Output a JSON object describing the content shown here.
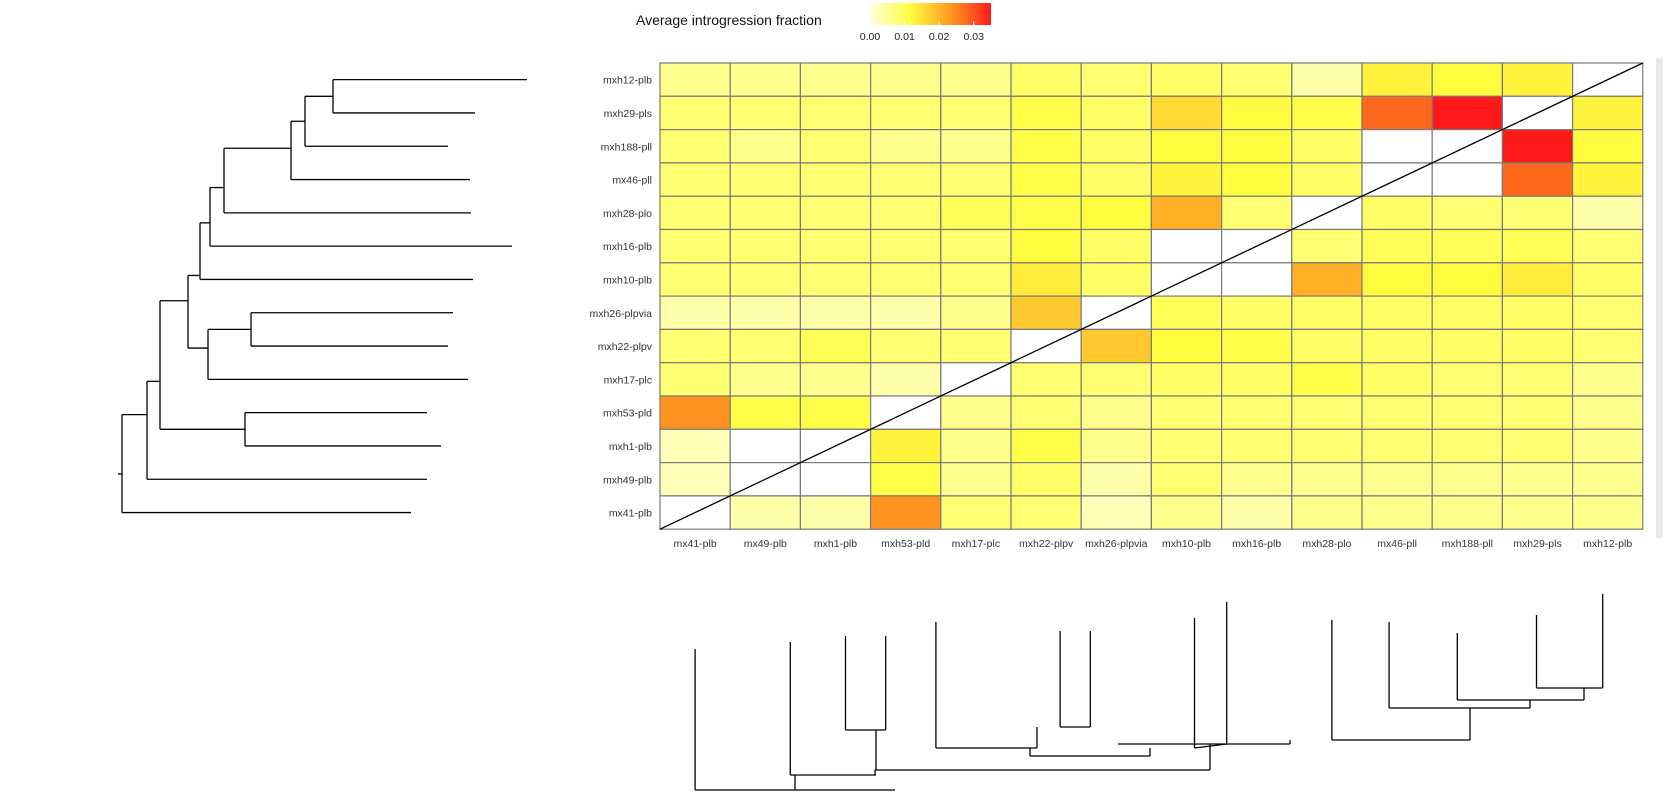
{
  "chart_data": {
    "type": "heatmap",
    "legend": {
      "title": "Average introgression fraction",
      "tick_labels": [
        "0.00",
        "0.01",
        "0.02",
        "0.03"
      ],
      "tick_values": [
        0.0,
        0.01,
        0.02,
        0.03
      ],
      "range": [
        0.0,
        0.035
      ],
      "colors": [
        "#ffffe0",
        "#ffff40",
        "#ff9a1f",
        "#ff1a1a"
      ],
      "placement": "top"
    },
    "rows_top_to_bottom": [
      "mxh12-plb",
      "mxh29-pls",
      "mxh188-pll",
      "mx46-pll",
      "mxh28-plo",
      "mxh16-plb",
      "mxh10-plb",
      "mxh26-plpvia",
      "mxh22-plpv",
      "mxh17-plc",
      "mxh53-pld",
      "mxh1-plb",
      "mxh49-plb",
      "mx41-plb"
    ],
    "columns_left_to_right": [
      "mx41-plb",
      "mx49-plb",
      "mxh1-plb",
      "mxh53-pld",
      "mxh17-plc",
      "mxh22-plpv",
      "mxh26-plpvia",
      "mxh10-plb",
      "mxh16-plb",
      "mxh28-plo",
      "mx46-pll",
      "mxh188-pll",
      "mxh29-pls",
      "mxh12-plb"
    ],
    "values": [
      [
        0.006,
        0.006,
        0.006,
        0.006,
        0.006,
        0.009,
        0.008,
        0.009,
        0.008,
        0.004,
        0.013,
        0.012,
        0.013,
        null
      ],
      [
        0.008,
        0.008,
        0.008,
        0.008,
        0.008,
        0.011,
        0.009,
        0.016,
        0.012,
        0.011,
        0.028,
        0.035,
        null,
        0.013
      ],
      [
        0.008,
        0.006,
        0.008,
        0.006,
        0.006,
        0.011,
        0.009,
        0.012,
        0.012,
        0.009,
        null,
        null,
        0.035,
        0.012
      ],
      [
        0.008,
        0.008,
        0.008,
        0.008,
        0.008,
        0.011,
        0.009,
        0.013,
        0.012,
        0.009,
        null,
        null,
        0.028,
        0.013
      ],
      [
        0.008,
        0.008,
        0.008,
        0.008,
        0.01,
        0.011,
        0.012,
        0.021,
        0.008,
        null,
        0.009,
        0.008,
        0.008,
        0.004
      ],
      [
        0.008,
        0.008,
        0.008,
        0.008,
        0.008,
        0.012,
        0.009,
        null,
        null,
        0.008,
        0.01,
        0.01,
        0.01,
        0.008
      ],
      [
        0.008,
        0.008,
        0.008,
        0.008,
        0.008,
        0.014,
        0.009,
        null,
        null,
        0.021,
        0.012,
        0.012,
        0.014,
        0.009
      ],
      [
        0.004,
        0.004,
        0.004,
        0.004,
        0.006,
        0.018,
        null,
        0.01,
        0.009,
        0.009,
        0.009,
        0.009,
        0.009,
        0.008
      ],
      [
        0.008,
        0.008,
        0.01,
        0.008,
        0.008,
        null,
        0.018,
        0.012,
        0.011,
        0.009,
        0.009,
        0.009,
        0.009,
        0.008
      ],
      [
        0.008,
        0.006,
        0.006,
        0.004,
        null,
        0.008,
        0.008,
        0.009,
        0.009,
        0.011,
        0.009,
        0.008,
        0.008,
        0.006
      ],
      [
        0.024,
        0.011,
        0.011,
        null,
        0.006,
        0.008,
        0.006,
        0.008,
        0.008,
        0.008,
        0.008,
        0.008,
        0.008,
        0.006
      ],
      [
        0.003,
        null,
        null,
        0.013,
        0.006,
        0.011,
        0.006,
        0.008,
        0.008,
        0.008,
        0.008,
        0.008,
        0.008,
        0.006
      ],
      [
        0.003,
        null,
        null,
        0.011,
        0.006,
        0.009,
        0.004,
        0.008,
        0.006,
        0.006,
        0.006,
        0.006,
        0.006,
        0.006
      ],
      [
        null,
        0.004,
        0.004,
        0.024,
        0.008,
        0.008,
        0.003,
        0.006,
        0.004,
        0.006,
        0.006,
        0.006,
        0.006,
        0.006
      ]
    ],
    "xlabel": "",
    "ylabel": "",
    "title": "",
    "grid": true,
    "diagonal_line": true,
    "dendrograms": [
      "left",
      "bottom"
    ]
  }
}
